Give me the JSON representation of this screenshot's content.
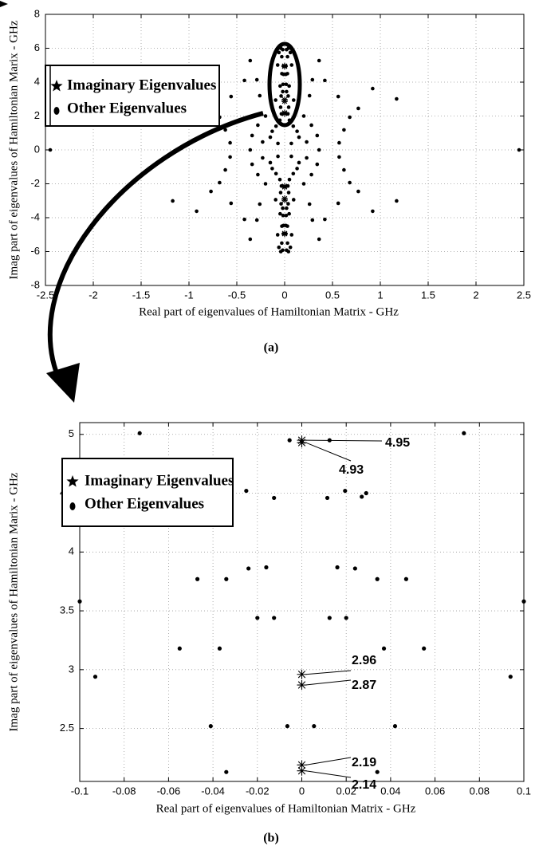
{
  "chart_data": [
    {
      "type": "scatter",
      "xlabel": "Real part of eigenvalues of Hamiltonian Matrix - GHz",
      "ylabel": "Imag part of eigenvalues of Hamiltonian Marix - GHz",
      "caption": "(a)",
      "xlim": [
        -2.5,
        2.5
      ],
      "ylim": [
        -8,
        8
      ],
      "xticks": [
        -2.5,
        -2,
        -1.5,
        -1,
        -0.5,
        0,
        0.5,
        1,
        1.5,
        2,
        2.5
      ],
      "yticks": [
        -8,
        -6,
        -4,
        -2,
        0,
        2,
        4,
        6,
        8
      ],
      "grid": true,
      "series": [
        {
          "name": "Imaginary Eigenvalues",
          "marker": "star",
          "color": "#000000",
          "x": [
            0,
            0,
            0,
            0,
            0,
            0,
            0,
            0,
            0,
            0,
            0,
            0
          ],
          "values": [
            4.95,
            4.93,
            2.96,
            2.87,
            2.19,
            2.14,
            -4.95,
            -4.93,
            -2.96,
            -2.87,
            -2.19,
            -2.14
          ]
        },
        {
          "name": "Other Eigenvalues",
          "marker": "dot",
          "color": "#000000",
          "x": [
            0.04,
            0.02,
            0.06,
            0.03,
            0.073,
            0.0125,
            0.36,
            0.0115,
            0.029,
            0.29,
            0.42,
            0.047,
            0.016,
            0.92,
            0.26,
            0.56,
            1.17,
            0.02,
            0.037,
            0.094,
            0.042,
            0.77,
            0.034,
            0.68,
            0.2,
            0.28,
            0.09,
            0.62,
            0.34,
            0.15,
            0.57,
            0.23,
            0.07,
            0.05,
            0.13,
            -0.04,
            -0.02,
            -0.06,
            -0.03,
            -0.073,
            -0.0125,
            -0.36,
            -0.0115,
            -0.029,
            -0.29,
            -0.42,
            -0.047,
            -0.016,
            -0.92,
            -0.26,
            -0.56,
            -1.17,
            -0.02,
            -0.037,
            -0.094,
            -0.042,
            -0.77,
            -0.034,
            -0.68,
            -0.2,
            -0.28,
            -0.09,
            -0.62,
            -0.34,
            -0.15,
            -0.57,
            -0.23,
            -0.07,
            -0.05,
            -0.13,
            -0.04,
            -0.02,
            -0.06,
            -0.03,
            -0.073,
            -0.0125,
            -0.36,
            -0.0115,
            -0.029,
            -0.29,
            -0.42,
            -0.047,
            -0.016,
            -0.92,
            -0.26,
            -0.56,
            -1.17,
            -0.02,
            -0.037,
            -0.094,
            -0.042,
            -0.77,
            -0.034,
            -0.68,
            -0.2,
            -0.28,
            -0.09,
            -0.62,
            -0.34,
            -0.15,
            -0.57,
            -0.23,
            -0.07,
            -0.05,
            -0.13,
            0.04,
            0.02,
            0.06,
            0.03,
            0.073,
            0.0125,
            0.36,
            0.0115,
            0.029,
            0.29,
            0.42,
            0.047,
            0.016,
            0.92,
            0.26,
            0.56,
            1.17,
            0.02,
            0.037,
            0.094,
            0.042,
            0.77,
            0.034,
            0.68,
            0.2,
            0.28,
            0.09,
            0.62,
            0.34,
            0.15,
            0.57,
            0.23,
            0.07,
            0.05,
            0.13,
            0.36,
            -0.36,
            2.45,
            -2.45
          ],
          "values": [
            6,
            5.92,
            5.75,
            5.5,
            5.01,
            4.95,
            5.27,
            4.46,
            4.5,
            4.14,
            4.1,
            3.77,
            3.87,
            3.62,
            3.2,
            3.15,
            3.01,
            3.44,
            3.18,
            2.94,
            2.52,
            2.45,
            2.13,
            1.93,
            2,
            1.46,
            1.4,
            1.18,
            0.85,
            0.75,
            0.42,
            0.47,
            0.38,
            1.75,
            1.1,
            6,
            5.92,
            5.75,
            5.5,
            5.01,
            4.95,
            5.27,
            4.46,
            4.5,
            4.14,
            4.1,
            3.77,
            3.87,
            3.62,
            3.2,
            3.15,
            3.01,
            3.44,
            3.18,
            2.94,
            2.52,
            2.45,
            2.13,
            1.93,
            2,
            1.46,
            1.4,
            1.18,
            0.85,
            0.75,
            0.42,
            0.47,
            0.38,
            1.75,
            1.1,
            -6,
            -5.92,
            -5.75,
            -5.5,
            -5.01,
            -4.95,
            -5.27,
            -4.46,
            -4.5,
            -4.14,
            -4.1,
            -3.77,
            -3.87,
            -3.62,
            -3.2,
            -3.15,
            -3.01,
            -3.44,
            -3.18,
            -2.94,
            -2.52,
            -2.45,
            -2.13,
            -1.93,
            -2,
            -1.46,
            -1.4,
            -1.18,
            -0.85,
            -0.75,
            -0.42,
            -0.47,
            -0.38,
            -1.75,
            -1.1,
            -6,
            -5.92,
            -5.75,
            -5.5,
            -5.01,
            -4.95,
            -5.27,
            -4.46,
            -4.5,
            -4.14,
            -4.1,
            -3.77,
            -3.87,
            -3.62,
            -3.2,
            -3.15,
            -3.01,
            -3.44,
            -3.18,
            -2.94,
            -2.52,
            -2.45,
            -2.13,
            -1.93,
            -2,
            -1.46,
            -1.4,
            -1.18,
            -0.85,
            -0.75,
            -0.42,
            -0.47,
            -0.38,
            -1.75,
            -1.1,
            0,
            0,
            0,
            0
          ]
        }
      ]
    },
    {
      "type": "scatter",
      "xlabel": "Real part of eigenvalues of Hamiltonian Matrix - GHz",
      "ylabel": "Imag part of eigenvalues of Hamiltonian Marix - GHz",
      "caption": "(b)",
      "xlim": [
        -0.1,
        0.1
      ],
      "ylim": [
        2.05,
        5.1
      ],
      "xticks": [
        -0.1,
        -0.08,
        -0.06,
        -0.04,
        -0.02,
        0,
        0.02,
        0.04,
        0.06,
        0.08,
        0.1
      ],
      "yticks": [
        2.5,
        3,
        3.5,
        4,
        4.5,
        5
      ],
      "grid": true,
      "series": [
        {
          "name": "Imaginary Eigenvalues",
          "marker": "star",
          "color": "#000000",
          "data_labels": true,
          "x": [
            0,
            0,
            0,
            0,
            0,
            0
          ],
          "values": [
            4.95,
            4.93,
            2.96,
            2.87,
            2.19,
            2.14
          ]
        },
        {
          "name": "Other Eigenvalues",
          "marker": "dot",
          "color": "#000000",
          "x": [
            -0.073,
            0.073,
            -0.0055,
            0.0125,
            -0.025,
            -0.0125,
            0.0115,
            0.0195,
            0.027,
            0.029,
            -0.047,
            -0.034,
            -0.024,
            -0.016,
            0.016,
            0.024,
            0.034,
            0.047,
            -0.1,
            0.1,
            -0.02,
            -0.0125,
            0.0125,
            0.02,
            -0.055,
            -0.037,
            0.037,
            0.055,
            -0.093,
            0.094,
            -0.041,
            -0.0065,
            0.0055,
            0.042,
            -0.034,
            0.034
          ],
          "values": [
            5.01,
            5.01,
            4.95,
            4.95,
            4.52,
            4.46,
            4.46,
            4.52,
            4.47,
            4.5,
            3.77,
            3.77,
            3.86,
            3.87,
            3.87,
            3.86,
            3.77,
            3.77,
            3.58,
            3.58,
            3.44,
            3.44,
            3.44,
            3.44,
            3.18,
            3.18,
            3.18,
            3.18,
            2.94,
            2.94,
            2.52,
            2.52,
            2.52,
            2.52,
            2.13,
            2.13
          ]
        }
      ]
    }
  ]
}
